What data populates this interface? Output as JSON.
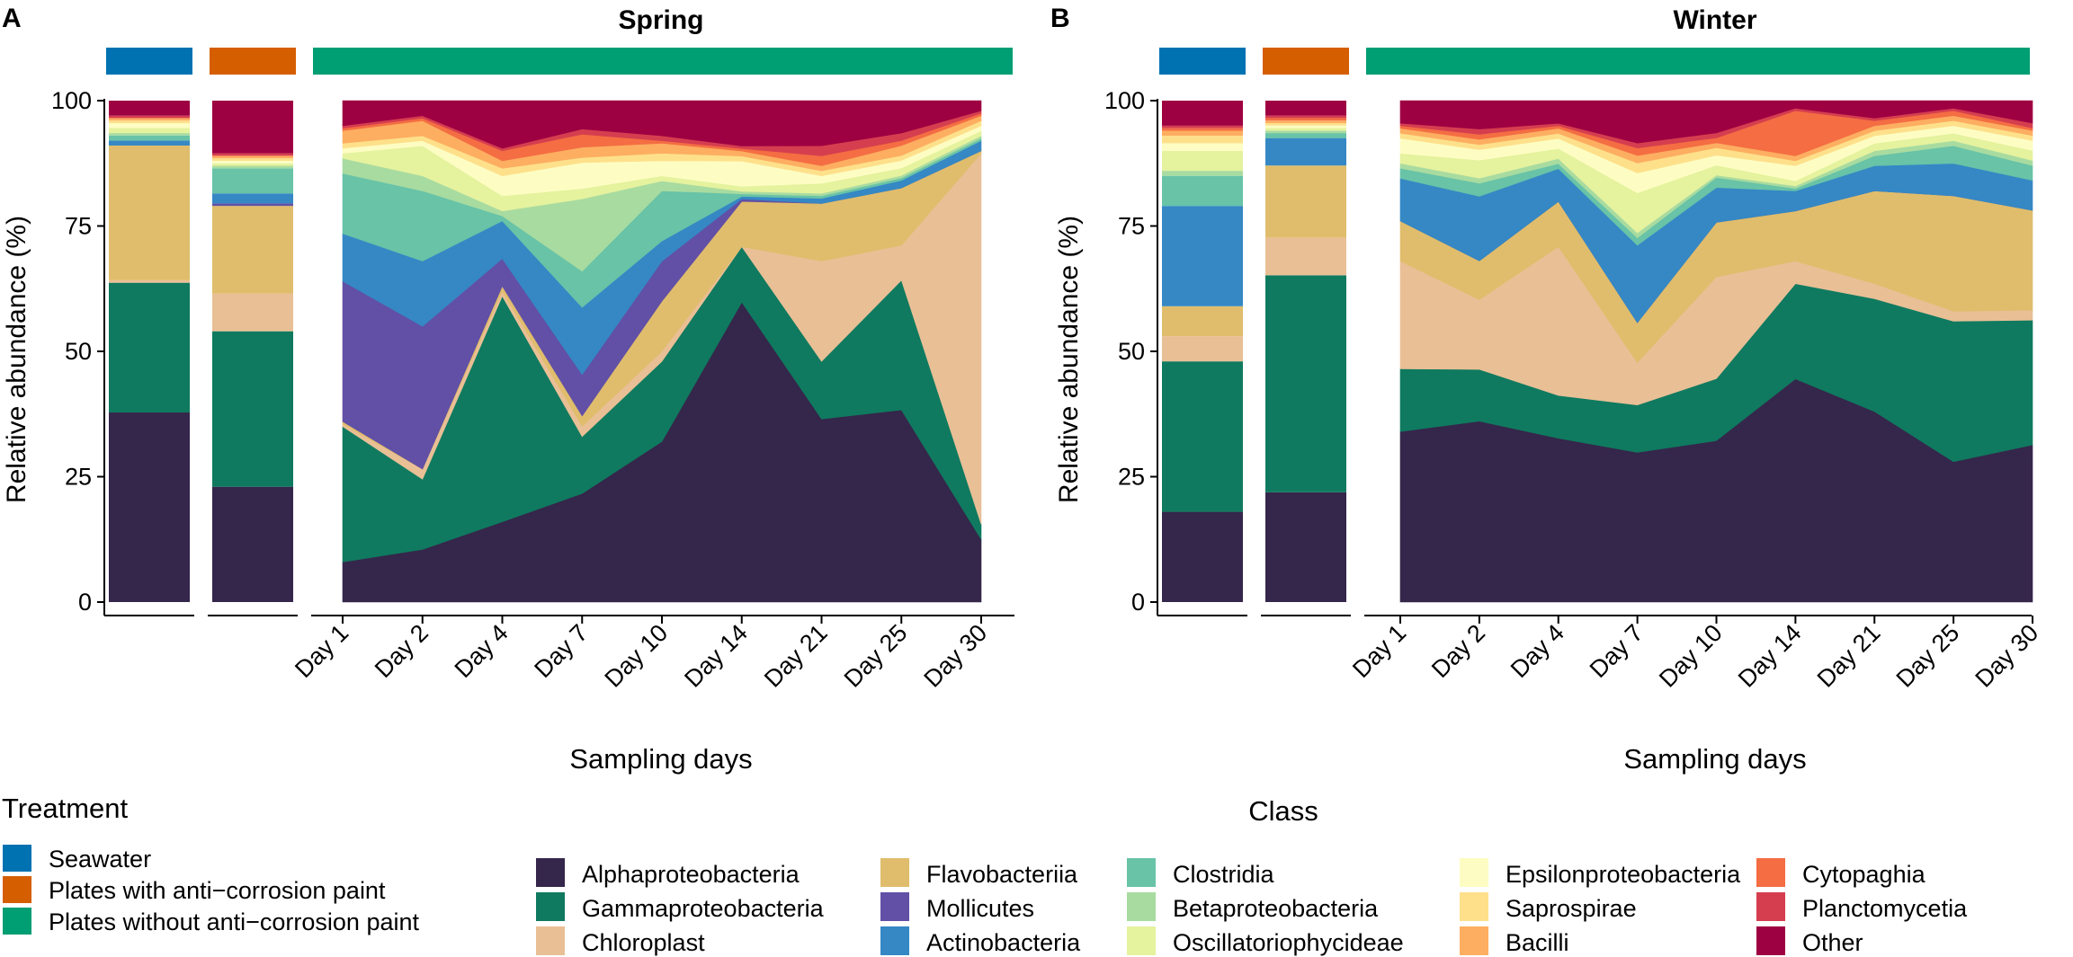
{
  "figure": {
    "axis_title_x": "Sampling days",
    "axis_title_y": "Relative abundance (%)",
    "y_ticks": [
      0,
      25,
      50,
      75,
      100
    ],
    "ylim": [
      0,
      100
    ]
  },
  "legend_treatment": {
    "title": "Treatment",
    "items": [
      {
        "label": "Seawater",
        "color": "#0072B2"
      },
      {
        "label": "Plates with anti−corrosion paint",
        "color": "#D55E00"
      },
      {
        "label": "Plates without anti−corrosion paint",
        "color": "#009E73"
      }
    ]
  },
  "legend_class": {
    "title": "Class",
    "items": [
      {
        "label": "Alphaproteobacteria",
        "color": "#35264B"
      },
      {
        "label": "Gammaproteobacteria",
        "color": "#0F7A5F"
      },
      {
        "label": "Chloroplast",
        "color": "#E9BF96"
      },
      {
        "label": "Flavobacteriia",
        "color": "#E0BD6C"
      },
      {
        "label": "Mollicutes",
        "color": "#6150A5"
      },
      {
        "label": "Actinobacteria",
        "color": "#3588C4"
      },
      {
        "label": "Clostridia",
        "color": "#68C3A7"
      },
      {
        "label": "Betaproteobacteria",
        "color": "#A8DBA0"
      },
      {
        "label": "Oscillatoriophycideae",
        "color": "#E5F29E"
      },
      {
        "label": "Epsilonproteobacteria",
        "color": "#FDFDC3"
      },
      {
        "label": "Saprospirae",
        "color": "#FEE08B"
      },
      {
        "label": "Bacilli",
        "color": "#FDAE61"
      },
      {
        "label": "Cytopaghia",
        "color": "#F46D43"
      },
      {
        "label": "Planctomycetia",
        "color": "#D53E4F"
      },
      {
        "label": "Other",
        "color": "#9E0142"
      }
    ]
  },
  "chart_data": [
    {
      "type": "area",
      "panel_label": "A",
      "title": "Spring",
      "xlabel": "Sampling days",
      "ylabel": "Relative abundance (%)",
      "ylim": [
        0,
        100
      ],
      "classes": [
        "Alphaproteobacteria",
        "Gammaproteobacteria",
        "Chloroplast",
        "Flavobacteriia",
        "Mollicutes",
        "Actinobacteria",
        "Clostridia",
        "Betaproteobacteria",
        "Oscillatoriophycideae",
        "Epsilonproteobacteria",
        "Saprospirae",
        "Bacilli",
        "Cytopaghia",
        "Planctomycetia",
        "Other"
      ],
      "seawater": [
        38,
        26,
        0.5,
        27,
        0,
        1,
        1,
        0.5,
        1,
        1,
        0.5,
        0.5,
        0,
        0.5,
        3
      ],
      "painted": [
        23,
        31,
        7.5,
        17.5,
        0.5,
        2,
        5,
        0.5,
        0.5,
        0.5,
        0.5,
        0.5,
        0,
        0.5,
        10.5
      ],
      "x": [
        "Day 1",
        "Day 2",
        "Day 4",
        "Day 7",
        "Day 10",
        "Day 14",
        "Day 21",
        "Day 25",
        "Day 30"
      ],
      "series": [
        {
          "name": "Alphaproteobacteria",
          "values": [
            8,
            10.5,
            16,
            21,
            32,
            59.5,
            36.5,
            38.5,
            12.5
          ]
        },
        {
          "name": "Gammaproteobacteria",
          "values": [
            27,
            14,
            45,
            11,
            16,
            11,
            11.5,
            26,
            3
          ]
        },
        {
          "name": "Chloroplast",
          "values": [
            0.5,
            2,
            1,
            2,
            2,
            0,
            20,
            7,
            74
          ]
        },
        {
          "name": "Flavobacteriia",
          "values": [
            0.5,
            0,
            1,
            2,
            10,
            9,
            11.5,
            11.5,
            0.5
          ]
        },
        {
          "name": "Mollicutes",
          "values": [
            28,
            28.5,
            5.5,
            8,
            8,
            0.5,
            0,
            0,
            0
          ]
        },
        {
          "name": "Actinobacteria",
          "values": [
            9.5,
            13,
            7.5,
            13,
            4,
            0.5,
            1,
            1.5,
            2
          ]
        },
        {
          "name": "Clostridia",
          "values": [
            12,
            14,
            1,
            7,
            10,
            0.5,
            0.5,
            0.5,
            0.5
          ]
        },
        {
          "name": "Betaproteobacteria",
          "values": [
            3,
            3,
            1,
            14,
            2,
            0.5,
            0.5,
            0.5,
            0.5
          ]
        },
        {
          "name": "Oscillatoriophycideae",
          "values": [
            1,
            6,
            3,
            2,
            1,
            1,
            2,
            1.5,
            1
          ]
        },
        {
          "name": "Epsilonproteobacteria",
          "values": [
            1,
            1,
            4,
            5,
            3,
            5,
            1.5,
            1.5,
            1
          ]
        },
        {
          "name": "Saprospirae",
          "values": [
            1,
            1,
            1.5,
            1,
            1.5,
            1,
            1,
            1,
            1
          ]
        },
        {
          "name": "Bacilli",
          "values": [
            2.5,
            3,
            1.5,
            2,
            2,
            1,
            1,
            2,
            1
          ]
        },
        {
          "name": "Cytopaghia",
          "values": [
            0.5,
            0.5,
            2,
            2.5,
            0.5,
            0.5,
            2,
            1,
            0.5
          ]
        },
        {
          "name": "Planctomycetia",
          "values": [
            0.5,
            0.5,
            0.5,
            1,
            1,
            0.5,
            2,
            1.5,
            0.5
          ]
        },
        {
          "name": "Other",
          "values": [
            5,
            3,
            9.5,
            5.5,
            7,
            9,
            9,
            6.5,
            2
          ]
        }
      ]
    },
    {
      "type": "area",
      "panel_label": "B",
      "title": "Winter",
      "xlabel": "Sampling days",
      "ylabel": "Relative abundance (%)",
      "ylim": [
        0,
        100
      ],
      "classes": [
        "Alphaproteobacteria",
        "Gammaproteobacteria",
        "Chloroplast",
        "Flavobacteriia",
        "Mollicutes",
        "Actinobacteria",
        "Clostridia",
        "Betaproteobacteria",
        "Oscillatoriophycideae",
        "Epsilonproteobacteria",
        "Saprospirae",
        "Bacilli",
        "Cytopaghia",
        "Planctomycetia",
        "Other"
      ],
      "seawater": [
        18,
        30,
        5,
        6,
        0,
        20,
        6,
        1,
        4,
        1.5,
        1.5,
        1,
        0.5,
        0.5,
        5
      ],
      "painted": [
        22,
        43.5,
        7.5,
        14.5,
        0,
        5.5,
        1,
        0.5,
        0.5,
        0.5,
        0.5,
        0.5,
        0.5,
        0.5,
        3
      ],
      "x": [
        "Day 1",
        "Day 2",
        "Day 4",
        "Day 7",
        "Day 10",
        "Day 14",
        "Day 21",
        "Day 25",
        "Day 30"
      ],
      "series": [
        {
          "name": "Alphaproteobacteria",
          "values": [
            34,
            35,
            32.5,
            30,
            32.5,
            44.5,
            38,
            28,
            31.5
          ]
        },
        {
          "name": "Gammaproteobacteria",
          "values": [
            12.5,
            10,
            8.5,
            9.5,
            12.5,
            19,
            22.5,
            28,
            25
          ]
        },
        {
          "name": "Chloroplast",
          "values": [
            21.5,
            13.5,
            29.5,
            8.5,
            20.5,
            4.5,
            3,
            2,
            2
          ]
        },
        {
          "name": "Flavobacteriia",
          "values": [
            8,
            7.5,
            9,
            8,
            11,
            10,
            18.5,
            23,
            20
          ]
        },
        {
          "name": "Mollicutes",
          "values": [
            0,
            0,
            0,
            0,
            0,
            0,
            0,
            0,
            0
          ]
        },
        {
          "name": "Actinobacteria",
          "values": [
            8.5,
            12.5,
            6.5,
            15.5,
            7,
            4,
            5,
            6.5,
            6
          ]
        },
        {
          "name": "Clostridia",
          "values": [
            2,
            2.5,
            1,
            1.5,
            2,
            0.5,
            2,
            3.5,
            3
          ]
        },
        {
          "name": "Betaproteobacteria",
          "values": [
            1,
            1,
            1,
            1,
            0.5,
            0.5,
            1,
            1,
            1
          ]
        },
        {
          "name": "Oscillatoriophycideae",
          "values": [
            2,
            3.5,
            2,
            8,
            2,
            1,
            1.5,
            1.5,
            2
          ]
        },
        {
          "name": "Epsilonproteobacteria",
          "values": [
            3,
            2,
            2,
            4,
            2,
            3,
            1.5,
            1.5,
            2
          ]
        },
        {
          "name": "Saprospirae",
          "values": [
            1,
            1,
            1,
            2,
            1.5,
            1,
            1,
            1,
            1
          ]
        },
        {
          "name": "Bacilli",
          "values": [
            1,
            1,
            1,
            1.5,
            1,
            1,
            1,
            1,
            1
          ]
        },
        {
          "name": "Cytopaghia",
          "values": [
            0.5,
            1,
            0.5,
            1.5,
            1,
            9,
            1,
            1,
            0.5
          ]
        },
        {
          "name": "Planctomycetia",
          "values": [
            0.5,
            1,
            0.5,
            1,
            1,
            0.5,
            0.5,
            0.5,
            1
          ]
        },
        {
          "name": "Other",
          "values": [
            4.5,
            5.5,
            4.5,
            8.5,
            6.5,
            1.5,
            3.5,
            1.5,
            4.5
          ]
        }
      ]
    }
  ]
}
